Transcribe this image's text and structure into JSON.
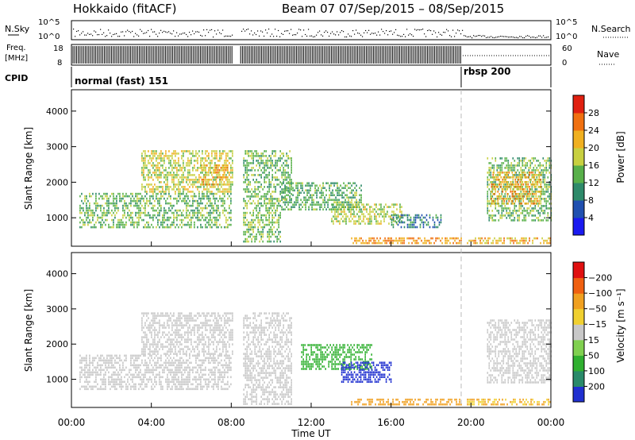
{
  "header": {
    "title": "Hokkaido (fitACF)",
    "subtitle": "Beam 07  07/Sep/2015 – 08/Sep/2015"
  },
  "strips": {
    "nsky": {
      "label": "N.Sky",
      "ticks": [
        "10^5",
        "10^0"
      ],
      "right_label": "N.Search",
      "right_ticks": [
        "10^5",
        "10^0"
      ]
    },
    "freq": {
      "label_lines": [
        "Freq.",
        "[MHz]"
      ],
      "ticks": [
        "18",
        "8"
      ],
      "right_label": "Nave",
      "right_ticks": [
        "60",
        "0"
      ]
    },
    "cpid": {
      "label": "CPID",
      "segments": [
        {
          "label": "normal (fast) 151",
          "start_hour": 0,
          "end_hour": 19.5
        },
        {
          "label": "rbsp 200",
          "start_hour": 19.5,
          "end_hour": 24
        }
      ]
    }
  },
  "chart_data": [
    {
      "type": "heatmap",
      "name": "power-panel",
      "ylabel": "Slant Range [km]",
      "y_ticks": [
        1000,
        2000,
        3000,
        4000
      ],
      "ylim": [
        200,
        4600
      ],
      "xlim": [
        0,
        24
      ],
      "colorbar": {
        "label": "Power [dB]",
        "range": [
          0,
          32
        ],
        "ticks": [
          "4",
          "8",
          "12",
          "16",
          "20",
          "24",
          "28"
        ],
        "colors": [
          "#1a1af0",
          "#2050b0",
          "#2e8a6a",
          "#58b04a",
          "#c8d040",
          "#f0b020",
          "#f07010",
          "#e02010"
        ]
      },
      "regions": [
        {
          "x": [
            0.4,
            8.0
          ],
          "y": [
            700,
            1700
          ],
          "value": 14
        },
        {
          "x": [
            3.5,
            8.1
          ],
          "y": [
            1700,
            2900
          ],
          "value": 18
        },
        {
          "x": [
            6.5,
            7.8
          ],
          "y": [
            1900,
            2500
          ],
          "value": 22
        },
        {
          "x": [
            8.6,
            10.5
          ],
          "y": [
            300,
            1500
          ],
          "value": 15
        },
        {
          "x": [
            8.6,
            11.0
          ],
          "y": [
            1500,
            2900
          ],
          "value": 14
        },
        {
          "x": [
            10.5,
            14.5
          ],
          "y": [
            1200,
            2000
          ],
          "value": 13
        },
        {
          "x": [
            13.0,
            16.5
          ],
          "y": [
            800,
            1400
          ],
          "value": 17
        },
        {
          "x": [
            16.0,
            18.5
          ],
          "y": [
            700,
            1100
          ],
          "value": 9
        },
        {
          "x": [
            14.0,
            19.5
          ],
          "y": [
            280,
            450
          ],
          "value": 24
        },
        {
          "x": [
            19.8,
            24.0
          ],
          "y": [
            250,
            450
          ],
          "value": 22
        },
        {
          "x": [
            20.8,
            24.0
          ],
          "y": [
            900,
            2700
          ],
          "value": 14
        },
        {
          "x": [
            21.0,
            23.5
          ],
          "y": [
            1400,
            2300
          ],
          "value": 22
        }
      ]
    },
    {
      "type": "heatmap",
      "name": "velocity-panel",
      "ylabel": "Slant Range [km]",
      "y_ticks": [
        1000,
        2000,
        3000,
        4000
      ],
      "ylim": [
        200,
        4600
      ],
      "xlim": [
        0,
        24
      ],
      "colorbar": {
        "label": "Velocity [m s⁻¹]",
        "ticks": [
          "200",
          "100",
          "50",
          "15",
          "−15",
          "−50",
          "−100",
          "−200"
        ],
        "colors": [
          "#2030d0",
          "#2a8a6a",
          "#30b030",
          "#80d050",
          "#c8c8c8",
          "#f0d030",
          "#f0a020",
          "#f06010",
          "#e01010"
        ]
      },
      "regions": [
        {
          "x": [
            0.4,
            8.0
          ],
          "y": [
            700,
            1700
          ],
          "value": 0
        },
        {
          "x": [
            3.5,
            8.1
          ],
          "y": [
            1700,
            2900
          ],
          "value": 0
        },
        {
          "x": [
            8.6,
            11.0
          ],
          "y": [
            300,
            2900
          ],
          "value": 0
        },
        {
          "x": [
            11.5,
            15.0
          ],
          "y": [
            1300,
            2000
          ],
          "value": 70
        },
        {
          "x": [
            13.5,
            16.0
          ],
          "y": [
            900,
            1500
          ],
          "value": 200
        },
        {
          "x": [
            14.0,
            19.5
          ],
          "y": [
            280,
            450
          ],
          "value": -50
        },
        {
          "x": [
            19.8,
            24.0
          ],
          "y": [
            250,
            450
          ],
          "value": -30
        },
        {
          "x": [
            20.8,
            24.0
          ],
          "y": [
            900,
            2700
          ],
          "value": 0
        }
      ]
    }
  ],
  "x_axis": {
    "label": "Time UT",
    "ticks": [
      "00:00",
      "04:00",
      "08:00",
      "12:00",
      "16:00",
      "20:00",
      "00:00"
    ]
  }
}
